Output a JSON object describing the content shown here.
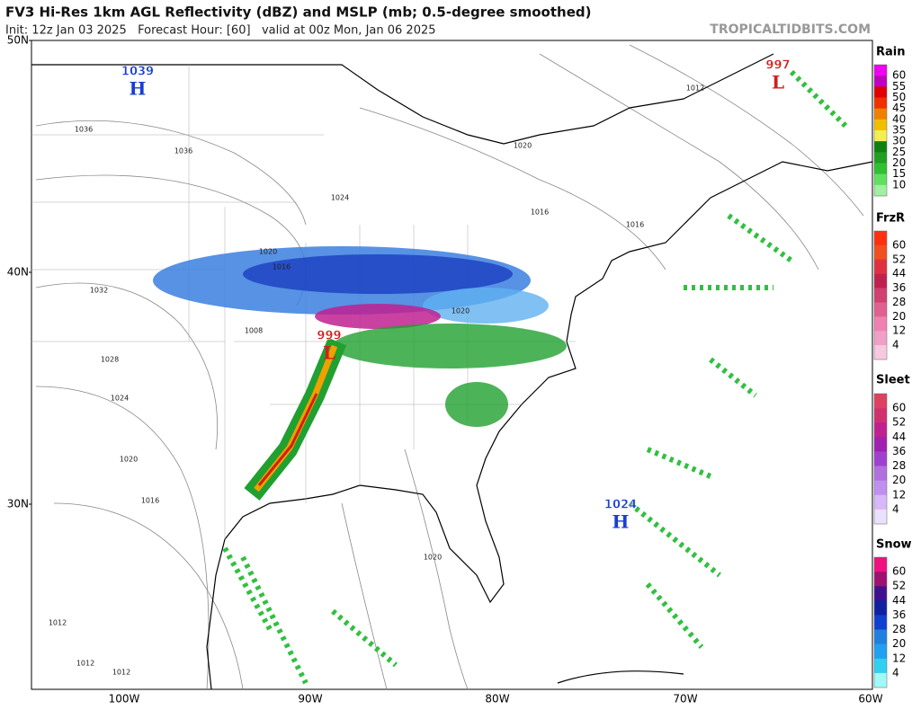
{
  "header": {
    "title": "FV3 Hi-Res 1km AGL Reflectivity (dBZ) and MSLP (mb; 0.5-degree smoothed)",
    "subtitle": "Init: 12z Jan 03 2025   Forecast Hour: [60]   valid at 00z Mon, Jan 06 2025",
    "site": "TROPICALTIDBITS.COM"
  },
  "axes": {
    "lat_labels": [
      "50N",
      "40N",
      "30N"
    ],
    "lon_labels": [
      "100W",
      "90W",
      "80W",
      "70W",
      "60W"
    ]
  },
  "pressure_centers": [
    {
      "value": "1039",
      "letter": "H",
      "color": "#1a3fd0"
    },
    {
      "value": "997",
      "letter": "L",
      "color": "#d02020"
    },
    {
      "value": "999",
      "letter": "L",
      "color": "#d02020"
    },
    {
      "value": "1024",
      "letter": "H",
      "color": "#1a3fd0"
    }
  ],
  "isobar_labels": [
    "1036",
    "1036",
    "1032",
    "1028",
    "1024",
    "1024",
    "1020",
    "1020",
    "1016",
    "1016",
    "1012",
    "1008",
    "1020",
    "1016",
    "1012",
    "1020",
    "1020",
    "1016",
    "1012",
    "1012"
  ],
  "legends": [
    {
      "title": "Rain",
      "ticks": [
        "60",
        "55",
        "50",
        "45",
        "40",
        "35",
        "30",
        "25",
        "20",
        "15",
        "10"
      ],
      "colors": [
        "#f000f0",
        "#c000c0",
        "#e00000",
        "#f03000",
        "#f08000",
        "#f0c000",
        "#f0f050",
        "#108010",
        "#20a020",
        "#30c030",
        "#60e060",
        "#a0f0a0"
      ]
    },
    {
      "title": "FrzR",
      "ticks": [
        "60",
        "52",
        "44",
        "36",
        "28",
        "20",
        "12",
        "4"
      ],
      "colors": [
        "#ff3010",
        "#f05020",
        "#e03040",
        "#c02050",
        "#d04070",
        "#e06090",
        "#f080b0",
        "#f0a0c8",
        "#f8c8e0"
      ]
    },
    {
      "title": "Sleet",
      "ticks": [
        "60",
        "52",
        "44",
        "36",
        "28",
        "20",
        "12",
        "4"
      ],
      "colors": [
        "#e04060",
        "#d03070",
        "#c02090",
        "#a020b0",
        "#a040d0",
        "#b070e0",
        "#c090f0",
        "#d8b8f8",
        "#ece0ff"
      ]
    },
    {
      "title": "Snow",
      "ticks": [
        "60",
        "52",
        "44",
        "36",
        "28",
        "20",
        "12",
        "4"
      ],
      "colors": [
        "#f01080",
        "#a01070",
        "#401090",
        "#1020a0",
        "#1040d0",
        "#2080e0",
        "#20a0f0",
        "#30d0f0",
        "#a0f8f8"
      ]
    }
  ]
}
